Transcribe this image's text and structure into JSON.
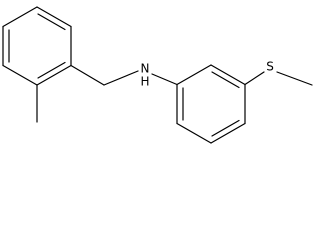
{
  "atoms": [
    {
      "label": "N"
    },
    {
      "label": "H"
    },
    {
      "label": "S"
    }
  ]
}
